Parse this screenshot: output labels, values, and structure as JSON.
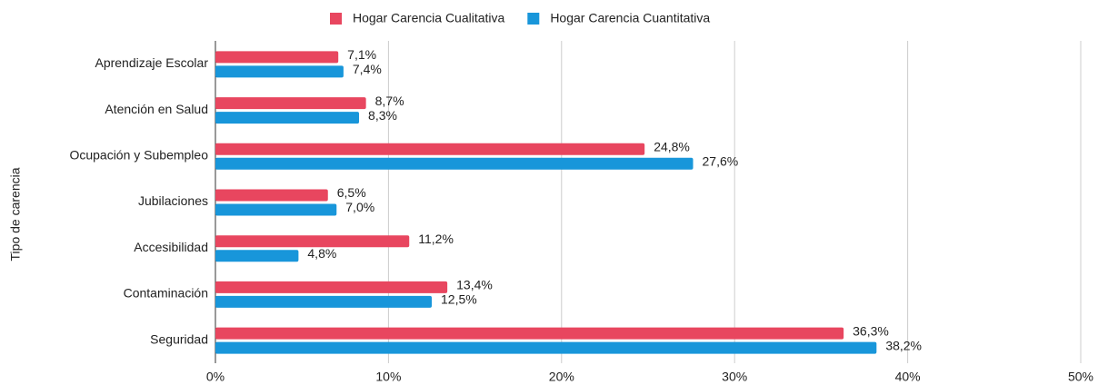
{
  "chart_data": {
    "type": "bar",
    "orientation": "horizontal",
    "y_axis_label": "Tipo de carencia",
    "categories": [
      "Aprendizaje Escolar",
      "Atención en Salud",
      "Ocupación y Subempleo",
      "Jubilaciones",
      "Accesibilidad",
      "Contaminación",
      "Seguridad"
    ],
    "series": [
      {
        "name": "Hogar Carencia Cualitativa",
        "color": "#e8465f",
        "values": [
          7.1,
          8.7,
          24.8,
          6.5,
          11.2,
          13.4,
          36.3
        ],
        "value_labels": [
          "7,1%",
          "8,7%",
          "24,8%",
          "6,5%",
          "11,2%",
          "13,4%",
          "36,3%"
        ]
      },
      {
        "name": "Hogar Carencia Cuantitativa",
        "color": "#1896da",
        "values": [
          7.4,
          8.3,
          27.6,
          7.0,
          4.8,
          12.5,
          38.2
        ],
        "value_labels": [
          "7,4%",
          "8,3%",
          "27,6%",
          "7,0%",
          "4,8%",
          "12,5%",
          "38,2%"
        ]
      }
    ],
    "xlim": [
      0,
      50
    ],
    "xticks": [
      {
        "value": 0,
        "label": "0%"
      },
      {
        "value": 10,
        "label": "10%"
      },
      {
        "value": 20,
        "label": "20%"
      },
      {
        "value": 30,
        "label": "30%"
      },
      {
        "value": 40,
        "label": "40%"
      },
      {
        "value": 50,
        "label": "50%"
      }
    ],
    "grid": true,
    "legend": "top"
  }
}
